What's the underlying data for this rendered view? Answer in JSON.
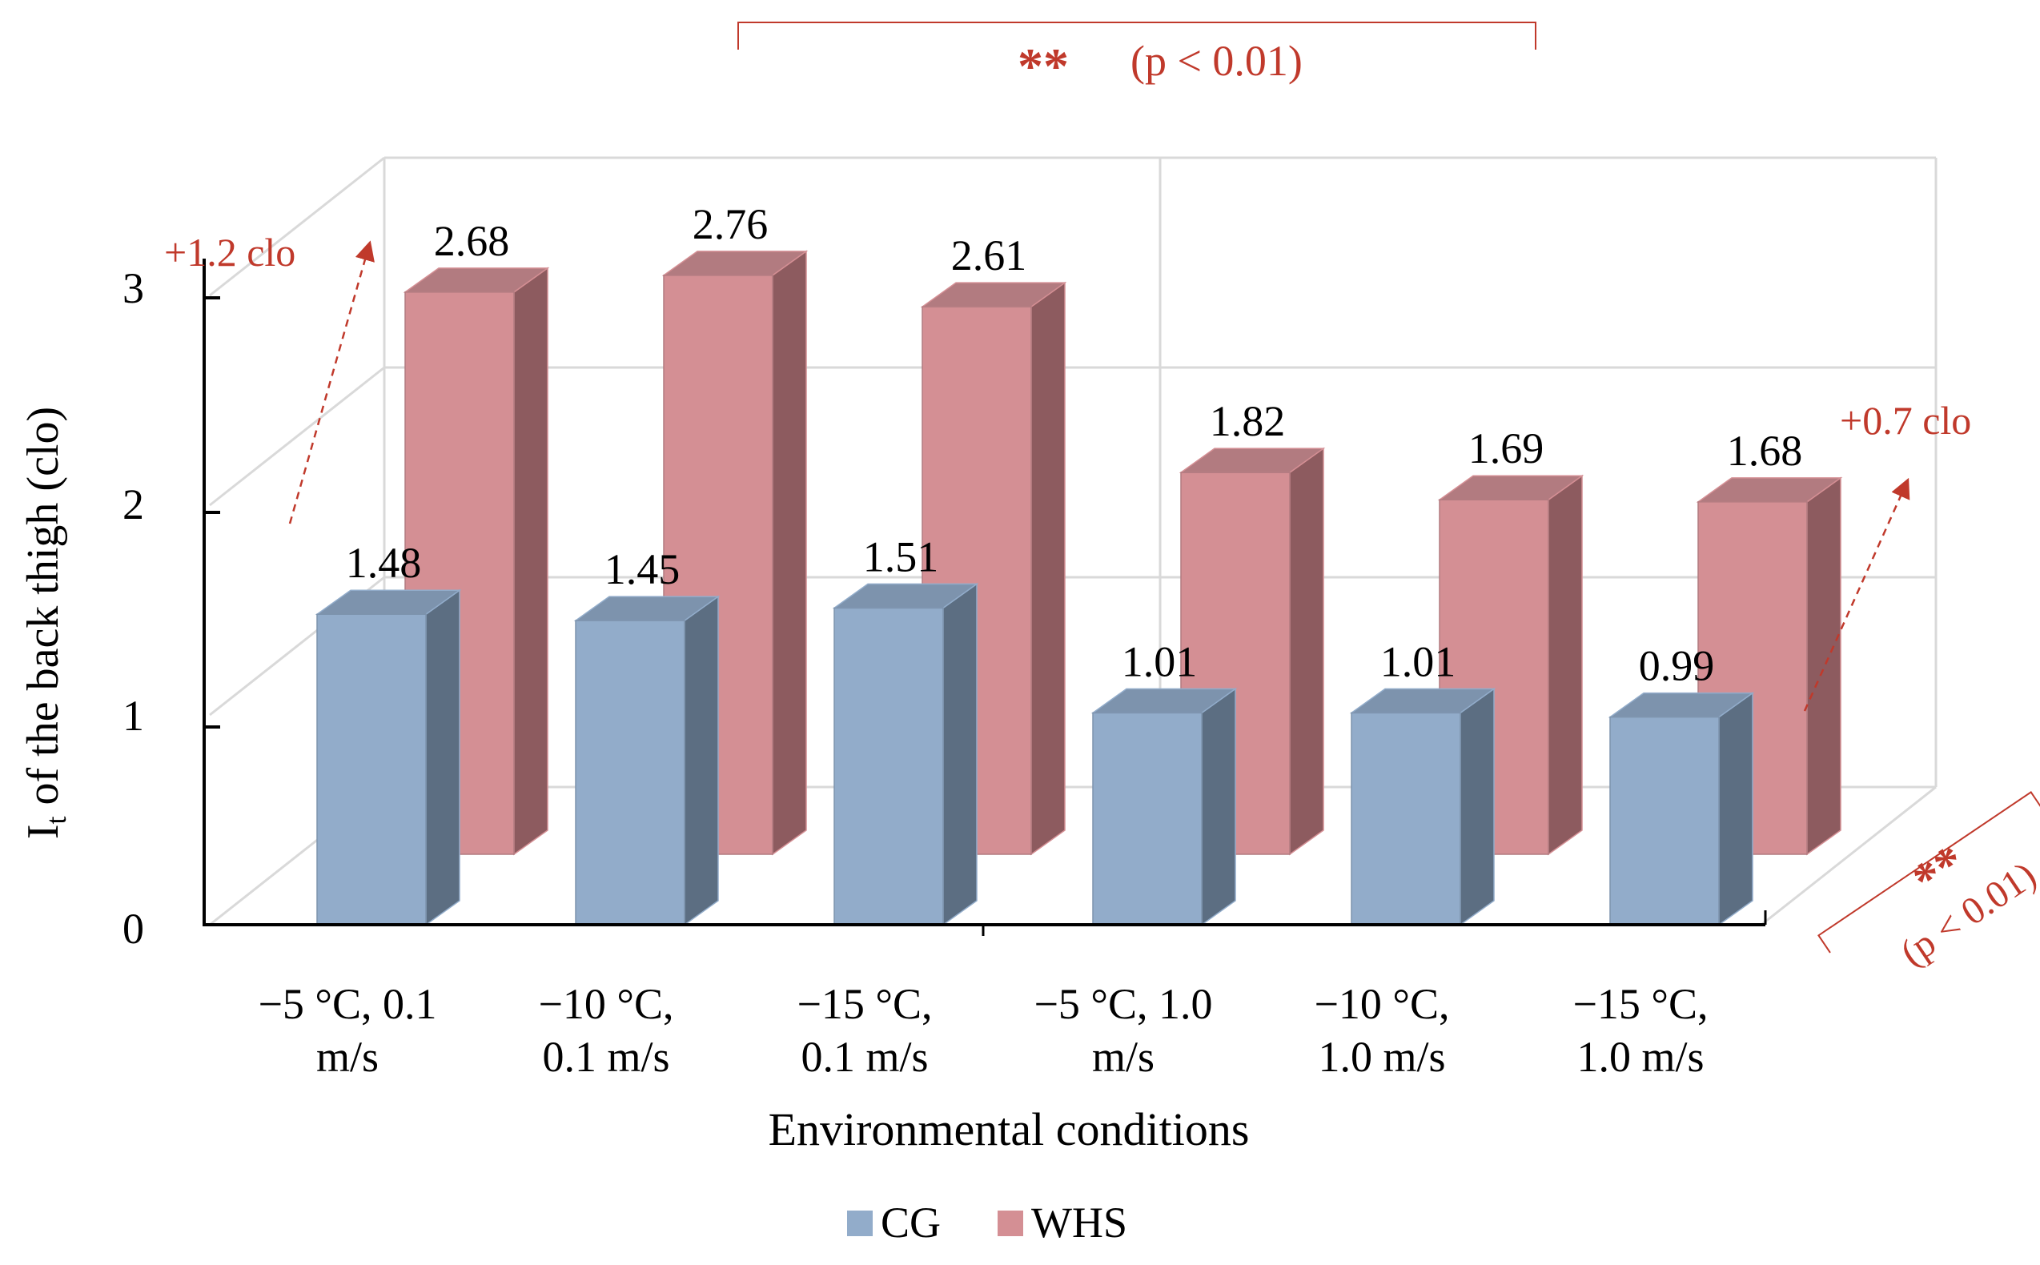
{
  "chart_data": {
    "type": "bar",
    "title": "",
    "ylabel_main": "I",
    "ylabel_sub": "t",
    "ylabel_rest": " of the back thigh (clo)",
    "xlabel": "Environmental conditions",
    "ylim": [
      0,
      3
    ],
    "yticks": [
      "0",
      "1",
      "2",
      "3"
    ],
    "categories": [
      [
        "−5 °C, 0.1",
        "m/s"
      ],
      [
        "−10 °C,",
        "0.1 m/s"
      ],
      [
        "−15 °C,",
        "0.1 m/s"
      ],
      [
        "−5 °C, 1.0",
        "m/s"
      ],
      [
        "−10 °C,",
        "1.0 m/s"
      ],
      [
        "−15 °C,",
        "1.0 m/s"
      ]
    ],
    "series": [
      {
        "name": "CG",
        "values": [
          1.48,
          1.45,
          1.51,
          1.01,
          1.01,
          0.99
        ],
        "labels": [
          "1.48",
          "1.45",
          "1.51",
          "1.01",
          "1.01",
          "0.99"
        ]
      },
      {
        "name": "WHS",
        "values": [
          2.68,
          2.76,
          2.61,
          1.82,
          1.69,
          1.68
        ],
        "labels": [
          "2.68",
          "2.76",
          "2.61",
          "1.82",
          "1.69",
          "1.68"
        ]
      }
    ],
    "legend": [
      {
        "name": "CG",
        "color": "#92acca"
      },
      {
        "name": "WHS",
        "color": "#d48f94"
      }
    ],
    "legend_position": "bottom-center",
    "annotations": {
      "diff_left": "+1.2 clo",
      "diff_right": "+0.7 clo",
      "sig_top_stars": "**",
      "sig_top_p": "(p < 0.01)",
      "sig_right_stars": "**",
      "sig_right_p": "(p < 0.01)"
    },
    "colors": {
      "cg_front": "#92acca",
      "cg_side": "#5c6e82",
      "cg_top": "#7d93ad",
      "whs_front": "#d48f94",
      "whs_side": "#8d5b5f",
      "whs_top": "#b27b80",
      "annotation": "#c0392b",
      "grid": "#d9d9d9",
      "axis": "#000000"
    }
  }
}
